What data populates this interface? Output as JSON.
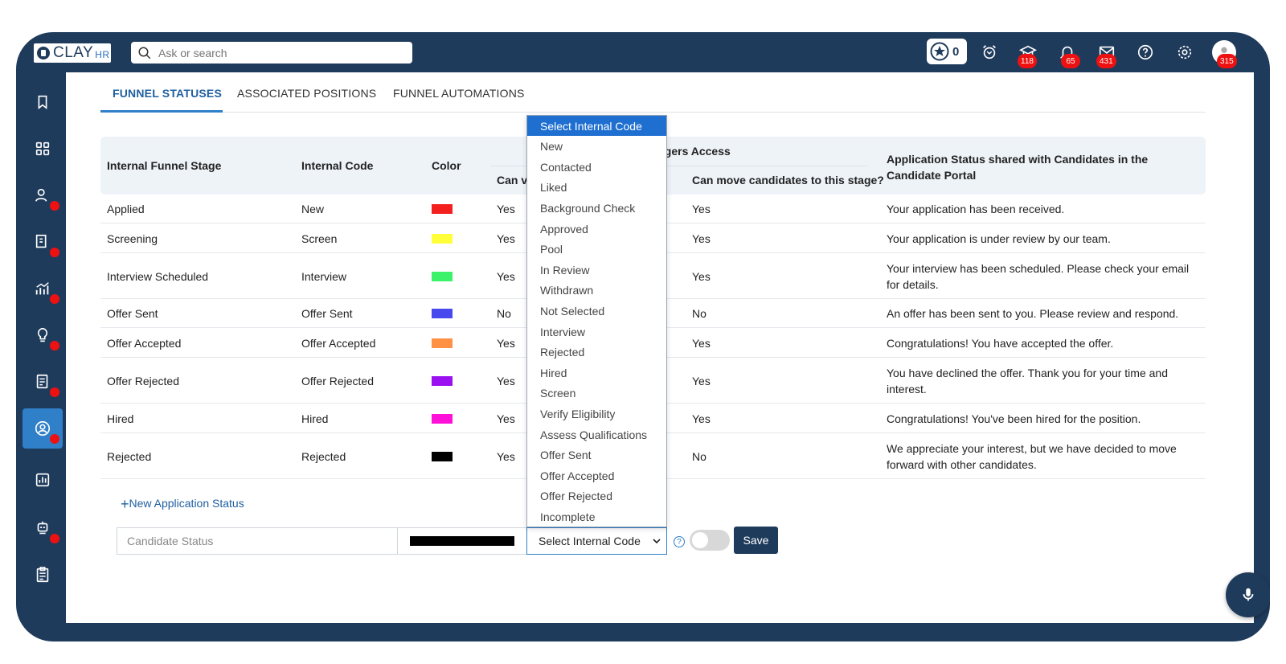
{
  "app": {
    "logo_text": "CLAY",
    "logo_suffix": "HR"
  },
  "search": {
    "placeholder": "Ask or search"
  },
  "topbar": {
    "star_count": "0",
    "badges": {
      "learning": "118",
      "notifications": "65",
      "messages": "431",
      "profile": "315"
    }
  },
  "tabs": [
    "FUNNEL STATUSES",
    "ASSOCIATED POSITIONS",
    "FUNNEL AUTOMATIONS"
  ],
  "table": {
    "headers": {
      "stage": "Internal Funnel Stage",
      "code": "Internal Code",
      "color": "Color",
      "managers_group": "Managers Access",
      "can_view": "Can vi",
      "can_move": "Can move candidates to this stage?",
      "status_shared": "Application Status shared with Candidates in the Candidate Portal"
    },
    "rows": [
      {
        "stage": "Applied",
        "code": "New",
        "color": "#f41f1f",
        "view": "Yes",
        "move": "Yes",
        "message": "Your application has been received."
      },
      {
        "stage": "Screening",
        "code": "Screen",
        "color": "#ffff3a",
        "view": "Yes",
        "move": "Yes",
        "message": "Your application is under review by our team."
      },
      {
        "stage": "Interview Scheduled",
        "code": "Interview",
        "color": "#3cf26a",
        "view": "Yes",
        "move": "Yes",
        "message": "Your interview has been scheduled. Please check your email for details."
      },
      {
        "stage": "Offer Sent",
        "code": "Offer Sent",
        "color": "#4848ef",
        "view": "No",
        "move": "No",
        "message": "An offer has been sent to you. Please review and respond."
      },
      {
        "stage": "Offer Accepted",
        "code": "Offer Accepted",
        "color": "#ff9044",
        "view": "Yes",
        "move": "Yes",
        "message": "Congratulations! You have accepted the offer."
      },
      {
        "stage": "Offer Rejected",
        "code": "Offer Rejected",
        "color": "#9a10f0",
        "view": "Yes",
        "move": "Yes",
        "message": "You have declined the offer. Thank you for your time and interest."
      },
      {
        "stage": "Hired",
        "code": "Hired",
        "color": "#ff10d8",
        "view": "Yes",
        "move": "Yes",
        "message": "Congratulations! You've been hired for the position."
      },
      {
        "stage": "Rejected",
        "code": "Rejected",
        "color": "#000000",
        "view": "Yes",
        "move": "No",
        "message": "We appreciate your interest, but we have decided to move forward with other candidates."
      }
    ]
  },
  "form": {
    "new_status_link": "New Application Status",
    "candidate_status_placeholder": "Candidate Status",
    "select_value": "Select Internal Code",
    "save_label": "Save"
  },
  "dropdown": {
    "options": [
      "Select Internal Code",
      "New",
      "Contacted",
      "Liked",
      "Background Check",
      "Approved",
      "Pool",
      "In Review",
      "Withdrawn",
      "Not Selected",
      "Interview",
      "Rejected",
      "Hired",
      "Screen",
      "Verify Eligibility",
      "Assess Qualifications",
      "Offer Sent",
      "Offer Accepted",
      "Offer Rejected",
      "Incomplete"
    ]
  }
}
